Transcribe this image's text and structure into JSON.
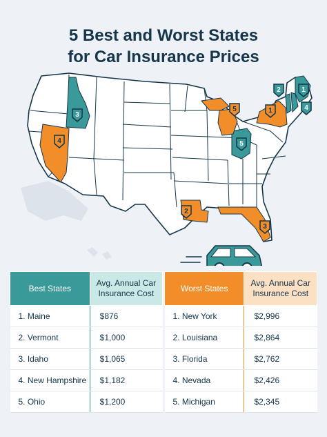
{
  "title_line1": "5 Best and Worst States",
  "title_line2": "for Car Insurance Prices",
  "colors": {
    "best": "#3a9a9a",
    "worst": "#f18e2a",
    "neutral": "#ffffff",
    "background": "#eef2f6",
    "border": "#14354a"
  },
  "map_markers": [
    {
      "rank": "1",
      "state": "Maine",
      "group": "best"
    },
    {
      "rank": "2",
      "state": "Vermont",
      "group": "best"
    },
    {
      "rank": "3",
      "state": "Idaho",
      "group": "best"
    },
    {
      "rank": "4",
      "state": "New Hampshire",
      "group": "best"
    },
    {
      "rank": "5",
      "state": "Ohio",
      "group": "best"
    },
    {
      "rank": "1",
      "state": "New York",
      "group": "worst"
    },
    {
      "rank": "2",
      "state": "Louisiana",
      "group": "worst"
    },
    {
      "rank": "3",
      "state": "Florida",
      "group": "worst"
    },
    {
      "rank": "4",
      "state": "Nevada",
      "group": "worst"
    },
    {
      "rank": "5",
      "state": "Michigan",
      "group": "worst"
    }
  ],
  "best": {
    "header_state": "Best States",
    "header_cost_line1": "Avg. Annual Car",
    "header_cost_line2": "Insurance Cost",
    "rows": [
      {
        "rank_name": "1. Maine",
        "cost": "$876"
      },
      {
        "rank_name": "2. Vermont",
        "cost": "$1,000"
      },
      {
        "rank_name": "3. Idaho",
        "cost": "$1,065"
      },
      {
        "rank_name": "4. New Hampshire",
        "cost": "$1,182"
      },
      {
        "rank_name": "5. Ohio",
        "cost": "$1,200"
      }
    ]
  },
  "worst": {
    "header_state": "Worst States",
    "header_cost_line1": "Avg. Annual Car",
    "header_cost_line2": "Insurance Cost",
    "rows": [
      {
        "rank_name": "1. New York",
        "cost": "$2,996"
      },
      {
        "rank_name": "2. Louisiana",
        "cost": "$2,864"
      },
      {
        "rank_name": "3. Florida",
        "cost": "$2,762"
      },
      {
        "rank_name": "4. Nevada",
        "cost": "$2,426"
      },
      {
        "rank_name": "5. Michigan",
        "cost": "$2,345"
      }
    ]
  }
}
